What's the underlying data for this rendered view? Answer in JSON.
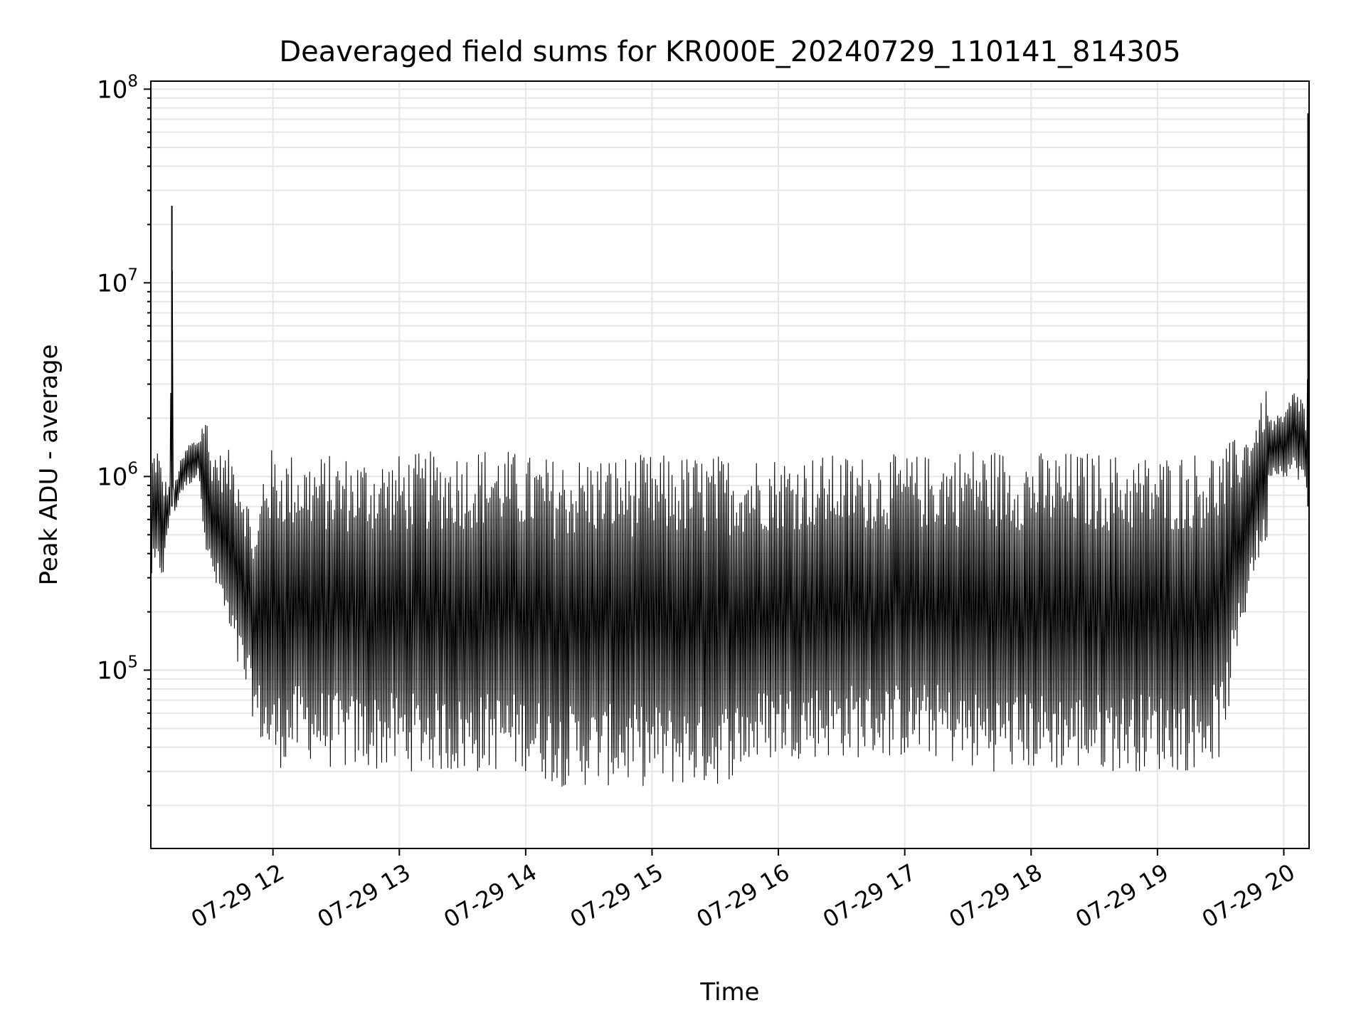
{
  "chart_data": {
    "type": "line",
    "title": "Deaveraged field sums for KR000E_20240729_110141_814305",
    "xlabel": "Time",
    "ylabel": "Peak ADU - average",
    "yscale": "log",
    "ylim": [
      12000,
      110000000
    ],
    "xlim": [
      "2024-07-29T11:02:00",
      "2024-07-29T20:12:00"
    ],
    "grid": true,
    "colors": {
      "line": "#000000",
      "grid": "#e6e6e6",
      "axes": "#000000"
    },
    "x_tick_labels": [
      "07-29 12",
      "07-29 13",
      "07-29 14",
      "07-29 15",
      "07-29 16",
      "07-29 17",
      "07-29 18",
      "07-29 19",
      "07-29 20"
    ],
    "x_tick_times": [
      "2024-07-29T12:00:00",
      "2024-07-29T13:00:00",
      "2024-07-29T14:00:00",
      "2024-07-29T15:00:00",
      "2024-07-29T16:00:00",
      "2024-07-29T17:00:00",
      "2024-07-29T18:00:00",
      "2024-07-29T19:00:00",
      "2024-07-29T20:00:00"
    ],
    "y_ticks": [
      {
        "value": 100000,
        "base": "10",
        "exp": "5"
      },
      {
        "value": 1000000,
        "base": "10",
        "exp": "6"
      },
      {
        "value": 10000000,
        "base": "10",
        "exp": "7"
      },
      {
        "value": 100000000,
        "base": "10",
        "exp": "8"
      }
    ],
    "series": [
      {
        "x": [
          "2024-07-29T11:02:00",
          "2024-07-29T11:05:00",
          "2024-07-29T11:08:00",
          "2024-07-29T11:11:00",
          "2024-07-29T11:12:00",
          "2024-07-29T11:13:00",
          "2024-07-29T11:16:00",
          "2024-07-29T11:20:00",
          "2024-07-29T11:25:00",
          "2024-07-29T11:28:00",
          "2024-07-29T11:30:00",
          "2024-07-29T11:33:00",
          "2024-07-29T11:36:00",
          "2024-07-29T11:40:00",
          "2024-07-29T11:44:00",
          "2024-07-29T11:48:00",
          "2024-07-29T11:52:00",
          "2024-07-29T11:56:00",
          "2024-07-29T12:00:00",
          "2024-07-29T12:15:00",
          "2024-07-29T12:30:00",
          "2024-07-29T12:45:00",
          "2024-07-29T13:00:00",
          "2024-07-29T13:15:00",
          "2024-07-29T13:30:00",
          "2024-07-29T13:45:00",
          "2024-07-29T14:00:00",
          "2024-07-29T14:15:00",
          "2024-07-29T14:30:00",
          "2024-07-29T14:45:00",
          "2024-07-29T15:00:00",
          "2024-07-29T15:15:00",
          "2024-07-29T15:30:00",
          "2024-07-29T15:45:00",
          "2024-07-29T16:00:00",
          "2024-07-29T16:15:00",
          "2024-07-29T16:30:00",
          "2024-07-29T16:45:00",
          "2024-07-29T17:00:00",
          "2024-07-29T17:15:00",
          "2024-07-29T17:30:00",
          "2024-07-29T17:45:00",
          "2024-07-29T18:00:00",
          "2024-07-29T18:15:00",
          "2024-07-29T18:30:00",
          "2024-07-29T18:45:00",
          "2024-07-29T19:00:00",
          "2024-07-29T19:15:00",
          "2024-07-29T19:30:00",
          "2024-07-29T19:45:00",
          "2024-07-29T19:52:00",
          "2024-07-29T19:53:00",
          "2024-07-29T20:00:00",
          "2024-07-29T20:05:00",
          "2024-07-29T20:10:00",
          "2024-07-29T20:11:00",
          "2024-07-29T20:12:00"
        ],
        "low": [
          280000,
          300000,
          300000,
          600000,
          600000,
          620000,
          800000,
          900000,
          1000000,
          400000,
          300000,
          250000,
          200000,
          120000,
          90000,
          70000,
          50000,
          35000,
          30000,
          35000,
          30000,
          30000,
          30000,
          30000,
          28000,
          30000,
          30000,
          25000,
          25000,
          25000,
          25000,
          25000,
          25000,
          30000,
          35000,
          35000,
          35000,
          35000,
          35000,
          35000,
          30000,
          30000,
          30000,
          30000,
          30000,
          30000,
          30000,
          30000,
          35000,
          300000,
          450000,
          1000000,
          1000000,
          1000000,
          900000,
          700000,
          700000
        ],
        "high": [
          1300000,
          1500000,
          1000000,
          900000,
          25000000,
          900000,
          1200000,
          1500000,
          1600000,
          2400000,
          1400000,
          1400000,
          1300000,
          1400000,
          1200000,
          800000,
          500000,
          1400000,
          1400000,
          1300000,
          1300000,
          1300000,
          1300000,
          1350000,
          1400000,
          1450000,
          1300000,
          1250000,
          1300000,
          1300000,
          1300000,
          1300000,
          1300000,
          1300000,
          1300000,
          1300000,
          1300000,
          1300000,
          1300000,
          1300000,
          1450000,
          1400000,
          1350000,
          1350000,
          1350000,
          1300000,
          1300000,
          1350000,
          1400000,
          1800000,
          2900000,
          2000000,
          2100000,
          2900000,
          2500000,
          1500000,
          75000000
        ]
      }
    ]
  }
}
